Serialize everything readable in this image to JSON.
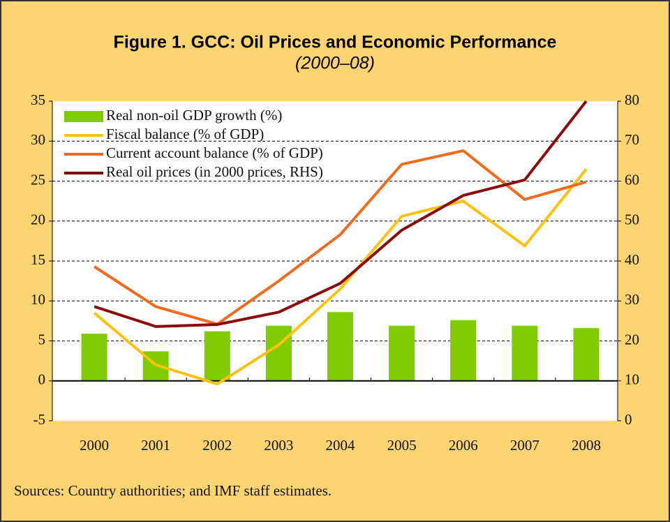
{
  "chart_data": {
    "type": "bar-line",
    "title": "Figure 1. GCC: Oil Prices and Economic Performance",
    "subtitle": "(2000–08)",
    "note": "Sources: Country authorities; and IMF staff estimates.",
    "categories": [
      "2000",
      "2001",
      "2002",
      "2003",
      "2004",
      "2005",
      "2006",
      "2007",
      "2008"
    ],
    "series": [
      {
        "name": "Real non-oil GDP growth (%)",
        "kind": "bar",
        "color": "#80cc00",
        "values": [
          5.9,
          3.7,
          6.2,
          6.9,
          8.6,
          6.9,
          7.6,
          6.9,
          6.6
        ]
      },
      {
        "name": "Fiscal balance (% of GDP)",
        "kind": "line",
        "color": "#ffc20e",
        "values": [
          8.5,
          2.0,
          -0.4,
          4.5,
          11.5,
          20.6,
          22.5,
          16.9,
          26.5
        ]
      },
      {
        "name": "Current account balance (% of GDP)",
        "kind": "line",
        "color": "#f26b1d",
        "values": [
          14.3,
          9.3,
          7.1,
          12.5,
          18.3,
          27.1,
          28.8,
          22.7,
          24.9
        ]
      },
      {
        "name": "Real oil prices (in 2000 prices, RHS)",
        "kind": "line",
        "color": "#8b0a0a",
        "axis": "y2",
        "values": [
          28.6,
          23.6,
          24.1,
          27.2,
          34.4,
          47.7,
          56.4,
          60.3,
          80
        ]
      }
    ],
    "ylim": [
      -5,
      35
    ],
    "yticks": [
      -5,
      0,
      5,
      10,
      15,
      20,
      25,
      30,
      35
    ],
    "y2lim": [
      0,
      80
    ],
    "y2ticks": [
      0,
      10,
      20,
      30,
      40,
      50,
      60,
      70,
      80
    ],
    "grid": true,
    "legend": "upper left"
  }
}
